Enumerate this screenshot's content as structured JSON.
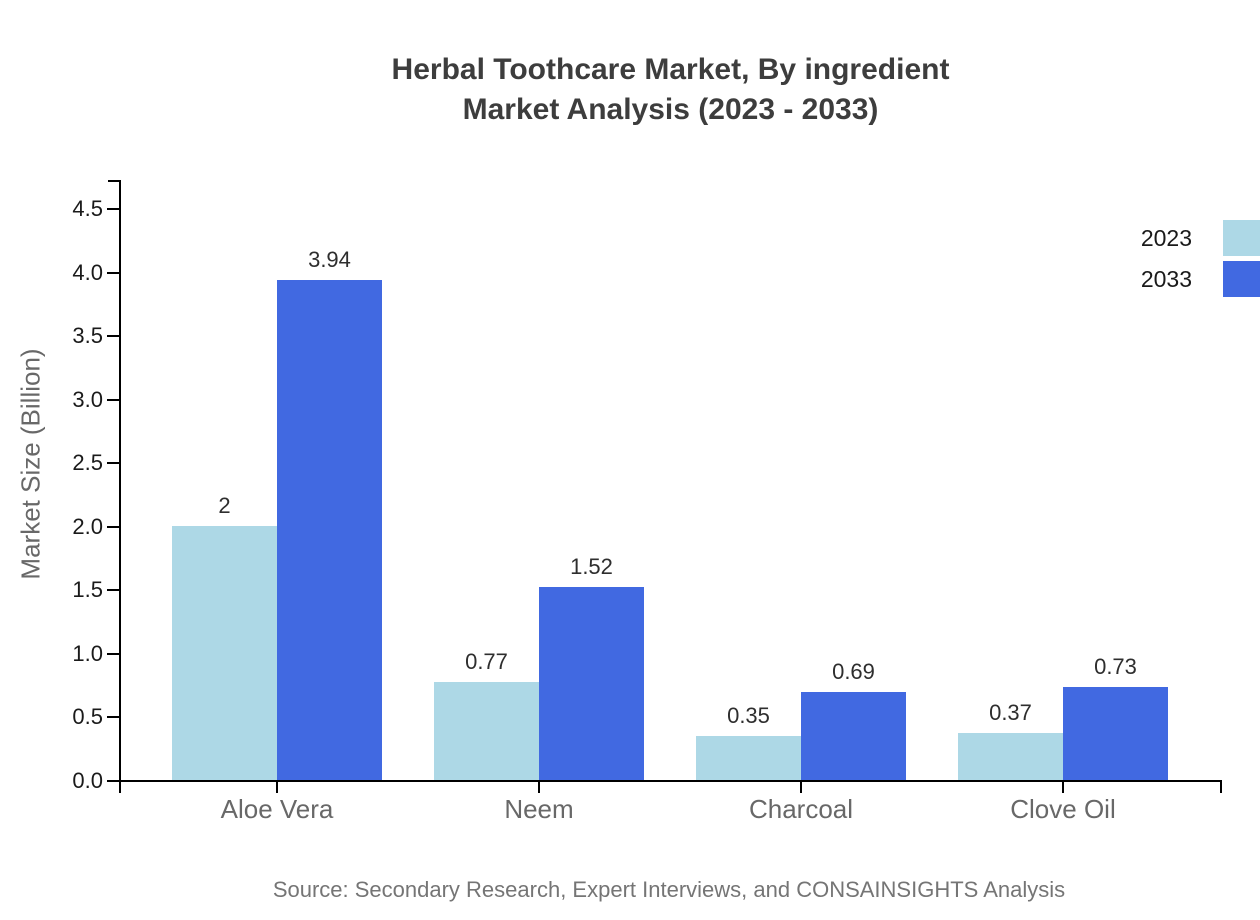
{
  "chart_data": {
    "type": "bar",
    "title_line1": "Herbal Toothcare Market, By ingredient",
    "title_line2": "Market Analysis (2023 - 2033)",
    "ylabel": "Market Size (Billion)",
    "xlabel": "",
    "categories": [
      "Aloe Vera",
      "Neem",
      "Charcoal",
      "Clove Oil"
    ],
    "series": [
      {
        "name": "2023",
        "color": "#ADD8E6",
        "values": [
          2,
          0.77,
          0.35,
          0.37
        ],
        "value_labels": [
          "2",
          "0.77",
          "0.35",
          "0.37"
        ]
      },
      {
        "name": "2033",
        "color": "#4169E1",
        "values": [
          3.94,
          1.52,
          0.69,
          0.73
        ],
        "value_labels": [
          "3.94",
          "1.52",
          "0.69",
          "0.73"
        ]
      }
    ],
    "y_tick_labels": [
      "0.0",
      "0.5",
      "1.0",
      "1.5",
      "2.0",
      "2.5",
      "3.0",
      "3.5",
      "4.0",
      "4.5"
    ],
    "ylim": [
      0,
      4.72
    ],
    "grid": false,
    "legend": {
      "position": "top-right",
      "entries": [
        "2023",
        "2033"
      ]
    },
    "source": "Source: Secondary Research, Expert Interviews, and CONSAINSIGHTS Analysis"
  },
  "colors": {
    "series_2023": "#ADD8E6",
    "series_2033": "#4169E1",
    "title_text": "#3d3d3d",
    "axis_label_text": "#686868",
    "tick_label_text": "#1a1a1a",
    "value_label_text": "#2e2e2e",
    "source_text": "#757575",
    "axis_line": "#000000",
    "background": "#ffffff"
  }
}
